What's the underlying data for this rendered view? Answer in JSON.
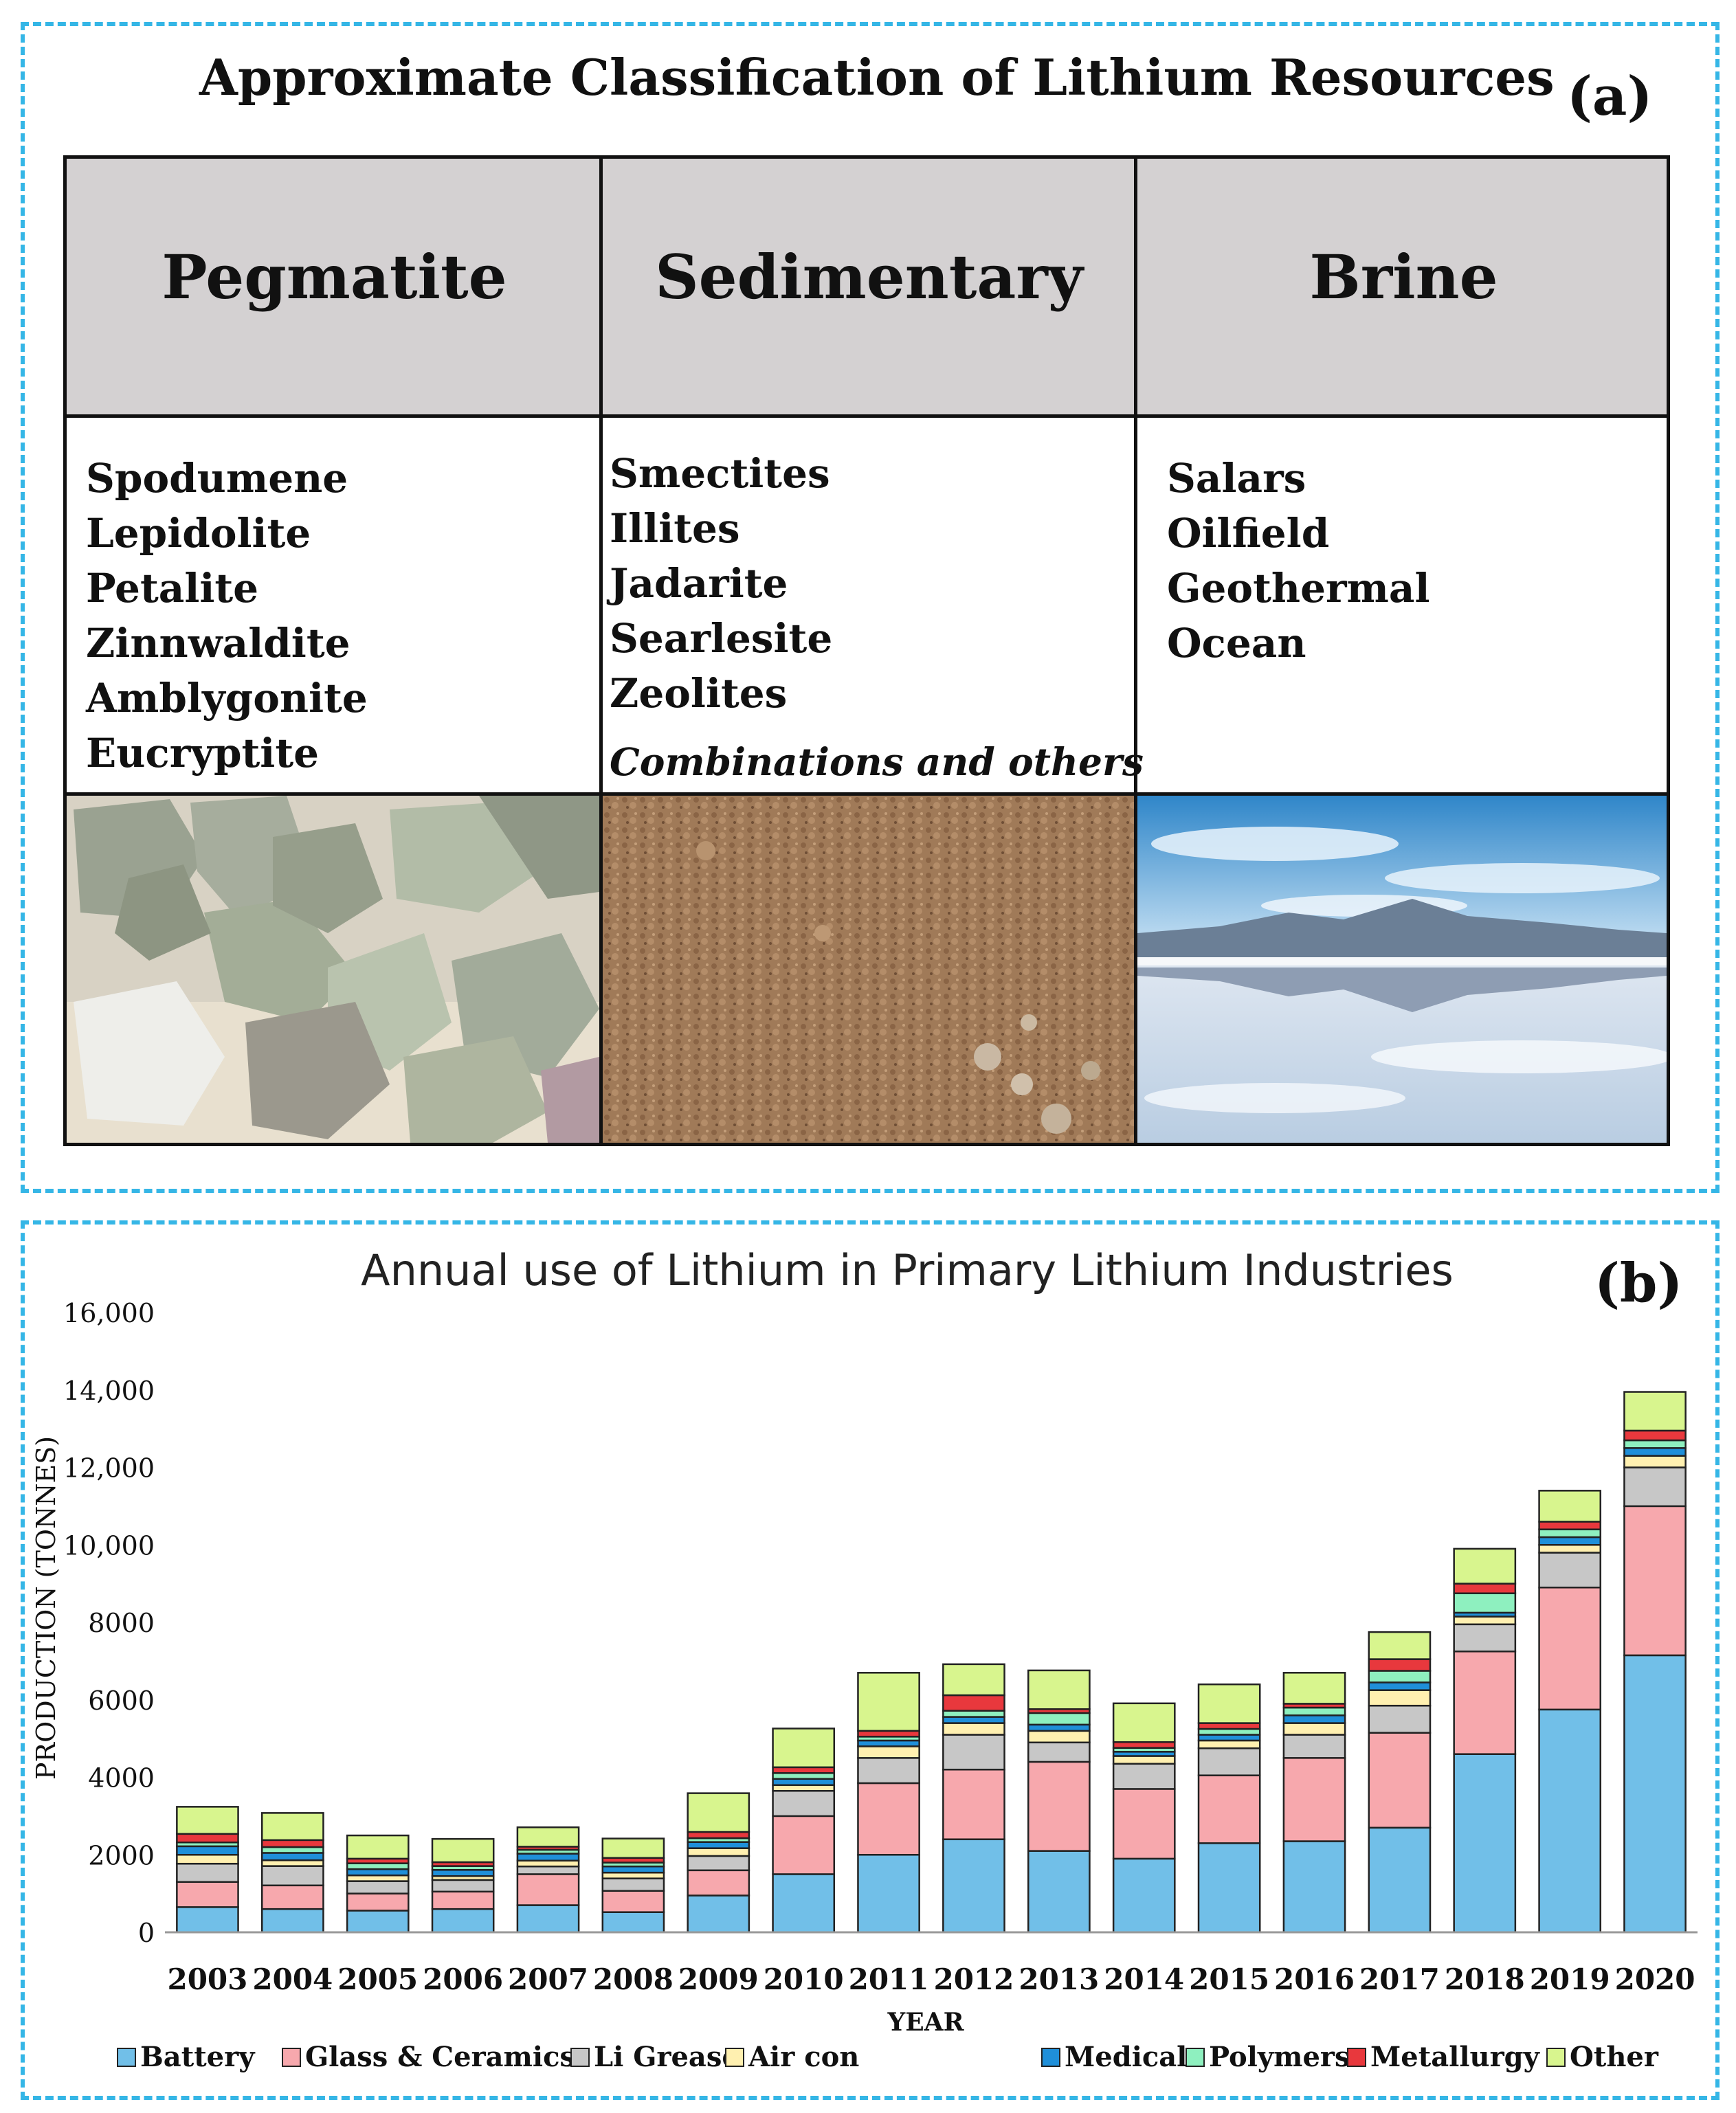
{
  "panel_a": {
    "title": "Approximate Classification of Lithium Resources",
    "tag": "(a)",
    "columns": [
      {
        "heading": "Pegmatite",
        "items": [
          "Spodumene",
          "Lepidolite",
          "Petalite",
          "Zinnwaldite",
          "Amblygonite",
          "Eucryptite"
        ]
      },
      {
        "heading": "Sedimentary",
        "items": [
          "Smectites",
          "Illites",
          "Jadarite",
          "Searlesite",
          "Zeolites"
        ],
        "note": "Combinations and others"
      },
      {
        "heading": "Brine",
        "items": [
          "Salars",
          "Oilfield",
          "Geothermal",
          "Ocean"
        ]
      }
    ]
  },
  "panel_b": {
    "tag": "(b)"
  },
  "chart_data": {
    "type": "bar",
    "stacked": true,
    "title": "Annual use of Lithium in Primary Lithium Industries",
    "xlabel": "YEAR",
    "ylabel": "PRODUCTION (TONNES)",
    "ylim": [
      0,
      16000
    ],
    "yticks": [
      0,
      2000,
      4000,
      6000,
      8000,
      10000,
      12000,
      14000,
      16000
    ],
    "ytick_labels": [
      "0",
      "2000",
      "4000",
      "6000",
      "8000",
      "10,000",
      "12,000",
      "14,000",
      "16,000"
    ],
    "grid": false,
    "legend_position": "bottom",
    "categories": [
      "2003",
      "2004",
      "2005",
      "2006",
      "2007",
      "2008",
      "2009",
      "2010",
      "2011",
      "2012",
      "2013",
      "2014",
      "2015",
      "2016",
      "2017",
      "2018",
      "2019",
      "2020"
    ],
    "series": [
      {
        "name": "Battery",
        "color": "#71bfe8",
        "values": [
          650,
          600,
          560,
          600,
          700,
          520,
          950,
          1500,
          2000,
          2400,
          2100,
          1900,
          2300,
          2350,
          2700,
          4600,
          5750,
          7150
        ]
      },
      {
        "name": "Glass & Ceramics",
        "color": "#f7a8ad",
        "values": [
          650,
          610,
          440,
          450,
          800,
          550,
          650,
          1500,
          1850,
          1800,
          2300,
          1800,
          1750,
          2150,
          2450,
          2650,
          3150,
          3850
        ]
      },
      {
        "name": "Li Grease",
        "color": "#c7c7c7",
        "values": [
          470,
          500,
          320,
          300,
          200,
          320,
          370,
          650,
          650,
          900,
          500,
          650,
          700,
          600,
          700,
          700,
          900,
          1000
        ]
      },
      {
        "name": "Air con",
        "color": "#fff0b0",
        "values": [
          230,
          150,
          150,
          100,
          150,
          150,
          200,
          150,
          300,
          300,
          300,
          200,
          200,
          300,
          400,
          200,
          200,
          300
        ]
      },
      {
        "name": "Medical",
        "color": "#1f8fd9",
        "values": [
          220,
          190,
          160,
          160,
          180,
          160,
          160,
          160,
          150,
          160,
          160,
          110,
          150,
          200,
          200,
          100,
          200,
          200
        ]
      },
      {
        "name": "Polymers",
        "color": "#8ef0bf",
        "values": [
          100,
          150,
          150,
          100,
          100,
          100,
          100,
          150,
          100,
          160,
          300,
          100,
          150,
          200,
          300,
          500,
          200,
          200
        ]
      },
      {
        "name": "Metallurgy",
        "color": "#e8383d",
        "values": [
          220,
          180,
          120,
          100,
          80,
          120,
          160,
          150,
          150,
          400,
          100,
          150,
          150,
          100,
          300,
          250,
          200,
          250
        ]
      },
      {
        "name": "Other",
        "color": "#d8f58e",
        "values": [
          700,
          700,
          600,
          600,
          500,
          500,
          1000,
          1000,
          1500,
          800,
          1000,
          1000,
          1000,
          800,
          700,
          900,
          800,
          1000
        ]
      }
    ]
  }
}
